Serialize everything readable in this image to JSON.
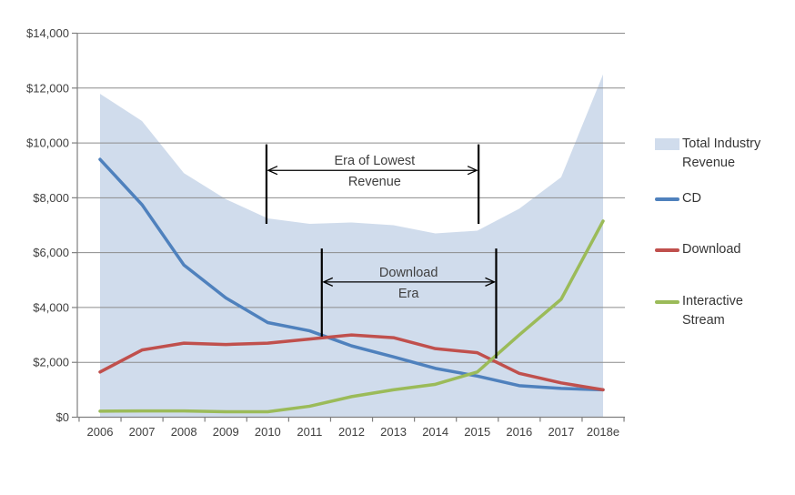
{
  "chart_data": {
    "type": "area+line",
    "title": "",
    "categories": [
      "2006",
      "2007",
      "2008",
      "2009",
      "2010",
      "2011",
      "2012",
      "2013",
      "2014",
      "2015",
      "2016",
      "2017",
      "2018e"
    ],
    "series": [
      {
        "name": "Total Industry Revenue",
        "type": "area",
        "color": "#D0DCEC",
        "values": [
          11790,
          10800,
          8900,
          7950,
          7250,
          7050,
          7100,
          7000,
          6700,
          6800,
          7600,
          8750,
          12500
        ]
      },
      {
        "name": "CD",
        "type": "line",
        "color": "#4F81BD",
        "values": [
          9400,
          7750,
          5550,
          4350,
          3450,
          3150,
          2600,
          2200,
          1780,
          1500,
          1150,
          1050,
          1000
        ]
      },
      {
        "name": "Download",
        "type": "line",
        "color": "#C0504D",
        "values": [
          1650,
          2450,
          2700,
          2650,
          2700,
          2850,
          3000,
          2900,
          2500,
          2350,
          1600,
          1250,
          1000
        ]
      },
      {
        "name": "Interactive Stream",
        "type": "line",
        "color": "#9BBB59",
        "values": [
          220,
          230,
          230,
          200,
          200,
          400,
          750,
          1000,
          1200,
          1650,
          3000,
          4300,
          7150
        ]
      }
    ],
    "y_axis": {
      "min": 0,
      "max": 14000,
      "step": 2000,
      "tick_labels": [
        "$0",
        "$2,000",
        "$4,000",
        "$6,000",
        "$8,000",
        "$10,000",
        "$12,000",
        "$14,000"
      ]
    },
    "x_axis": {
      "tick_labels": [
        "2006",
        "2007",
        "2008",
        "2009",
        "2010",
        "2011",
        "2012",
        "2013",
        "2014",
        "2015",
        "2016",
        "2017",
        "2018e"
      ]
    },
    "grid": true,
    "legend_position": "right",
    "annotations": [
      {
        "id": "era-of-lowest-revenue",
        "text_lines": [
          "Era of Lowest",
          "Revenue"
        ],
        "from_index": 3.97,
        "to_index": 9.03,
        "text_index": 6.55,
        "bracket_top_value": 9950,
        "bracket_bottom_left_value": 7050,
        "bracket_bottom_right_value": 7050,
        "arrow_value": 9000
      },
      {
        "id": "download-era",
        "text_lines": [
          "Download",
          "Era"
        ],
        "from_index": 5.29,
        "to_index": 9.45,
        "text_index": 7.36,
        "bracket_top_value": 6150,
        "bracket_bottom_left_value": 2940,
        "bracket_bottom_right_value": 2140,
        "arrow_value": 4930
      }
    ],
    "colors": {
      "gridline": "#8C8C8C",
      "axis": "#7F7F7F",
      "axis_text": "#3F3F3F",
      "annotation": "#000000",
      "background": "#FFFFFF"
    }
  }
}
